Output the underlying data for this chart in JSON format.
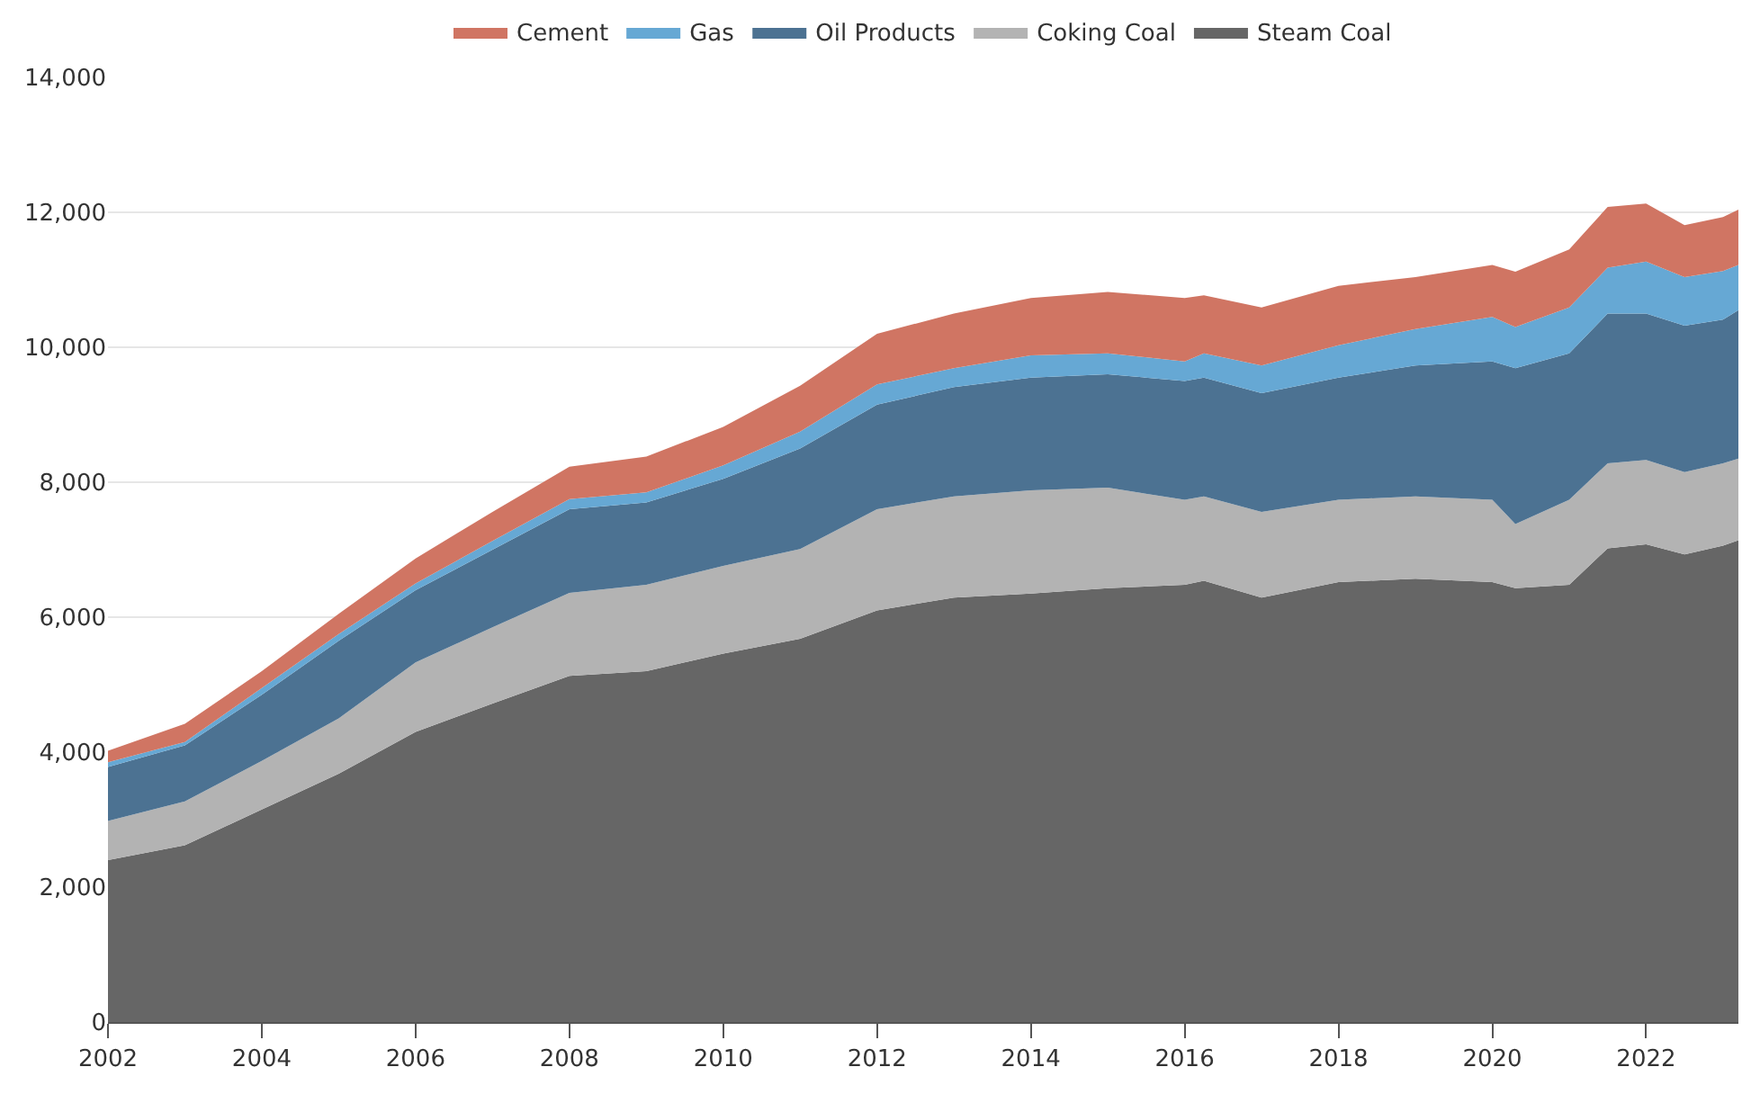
{
  "chart_data": {
    "type": "area",
    "stacked": true,
    "x": [
      2002,
      2003,
      2004,
      2005,
      2006,
      2007,
      2008,
      2009,
      2010,
      2011,
      2012,
      2013,
      2014,
      2015,
      2016,
      2016.25,
      2017,
      2018,
      2019,
      2020,
      2020.3,
      2021,
      2021.5,
      2022,
      2022.5,
      2023,
      2023.2
    ],
    "series": [
      {
        "name": "Steam Coal",
        "color": "#666666",
        "values": [
          2400,
          2620,
          3150,
          3680,
          4300,
          4720,
          5130,
          5200,
          5460,
          5680,
          6100,
          6290,
          6350,
          6430,
          6480,
          6540,
          6290,
          6520,
          6570,
          6520,
          6430,
          6480,
          7020,
          7080,
          6930,
          7060,
          7140
        ]
      },
      {
        "name": "Coking Coal",
        "color": "#b3b3b3",
        "values": [
          580,
          650,
          720,
          820,
          1030,
          1130,
          1230,
          1280,
          1300,
          1330,
          1500,
          1500,
          1530,
          1490,
          1260,
          1250,
          1270,
          1220,
          1220,
          1220,
          950,
          1260,
          1260,
          1250,
          1220,
          1220,
          1210
        ]
      },
      {
        "name": "Oil Products",
        "color": "#4c7292",
        "values": [
          800,
          830,
          980,
          1150,
          1070,
          1150,
          1240,
          1220,
          1290,
          1490,
          1550,
          1620,
          1670,
          1680,
          1760,
          1760,
          1760,
          1810,
          1940,
          2050,
          2310,
          2170,
          2220,
          2170,
          2170,
          2130,
          2200
        ]
      },
      {
        "name": "Gas",
        "color": "#66a8d4",
        "values": [
          70,
          50,
          100,
          100,
          100,
          130,
          150,
          150,
          200,
          250,
          300,
          280,
          330,
          310,
          290,
          360,
          410,
          480,
          540,
          660,
          610,
          680,
          680,
          770,
          720,
          720,
          670
        ]
      },
      {
        "name": "Cement",
        "color": "#d07563",
        "values": [
          170,
          270,
          250,
          300,
          370,
          430,
          480,
          530,
          570,
          680,
          750,
          810,
          850,
          910,
          940,
          860,
          860,
          880,
          770,
          770,
          820,
          860,
          900,
          860,
          770,
          800,
          820
        ]
      }
    ],
    "xlim": [
      2002,
      2023.2
    ],
    "xticks": [
      2002,
      2004,
      2006,
      2008,
      2010,
      2012,
      2014,
      2016,
      2018,
      2020,
      2022
    ],
    "ylim": [
      0,
      14000
    ],
    "yticks": [
      0,
      {
        "value": 2000,
        "label": "2,000"
      },
      {
        "value": 4000,
        "label": "4,000"
      },
      {
        "value": 6000,
        "label": "6,000"
      },
      {
        "value": 8000,
        "label": "8,000"
      },
      {
        "value": 10000,
        "label": "10,000"
      },
      {
        "value": 12000,
        "label": "12,000"
      },
      {
        "value": 14000,
        "label": "14,000"
      }
    ],
    "grid": "y",
    "legend": "top"
  }
}
